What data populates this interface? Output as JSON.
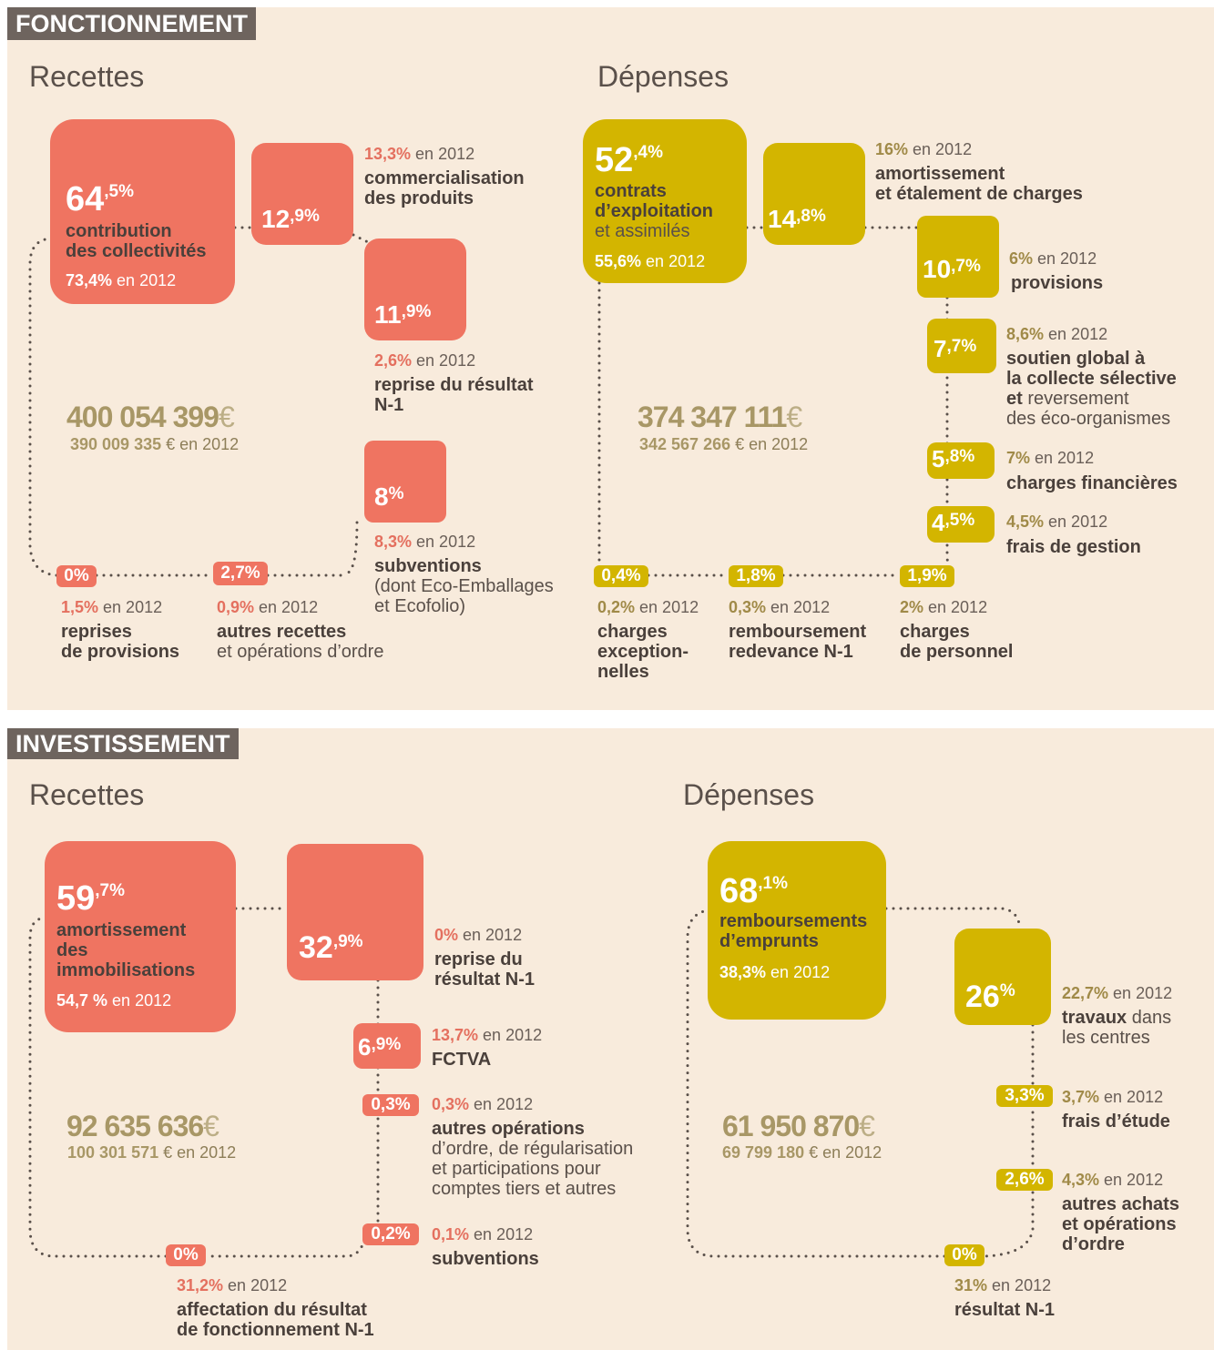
{
  "sections": [
    {
      "title": "FONCTIONNEMENT",
      "panels": [
        {
          "heading": "Recettes",
          "total": "400 054 399€",
          "total_2012": "390 009 335 € en 2012",
          "items": [
            {
              "value": "64,5%",
              "label": "contribution\ndes collectivités",
              "prev": "73,4% en 2012"
            },
            {
              "value": "12,9%",
              "label": "commercialisation\ndes produits",
              "prev": "13,3% en 2012"
            },
            {
              "value": "11,9%",
              "label": "reprise du résultat\nN-1",
              "prev": "2,6% en 2012"
            },
            {
              "value": "8%",
              "label": "subventions",
              "note": "(dont Eco-Emballages\net Ecofolio)",
              "prev": "8,3% en 2012"
            },
            {
              "value": "0%",
              "label": "reprises\nde provisions",
              "prev": "1,5% en 2012"
            },
            {
              "value": "2,7%",
              "label": "autres recettes",
              "note": "et opérations d’ordre",
              "prev": "0,9% en 2012"
            }
          ]
        },
        {
          "heading": "Dépenses",
          "total": "374 347 111€",
          "total_2012": "342 567 266 € en 2012",
          "items": [
            {
              "value": "52,4%",
              "label": "contrats\nd’exploitation",
              "note": "et assimilés",
              "prev": "55,6% en 2012"
            },
            {
              "value": "14,8%",
              "label": "amortissement\net étalement de charges",
              "prev": "16% en 2012"
            },
            {
              "value": "10,7%",
              "label": "provisions",
              "prev": "6% en 2012"
            },
            {
              "value": "7,7%",
              "label": "soutien global à\nla collecte sélective\net",
              "note": "reversement\ndes éco-organismes",
              "prev": "8,6% en 2012"
            },
            {
              "value": "5,8%",
              "label": "charges financières",
              "prev": "7% en 2012"
            },
            {
              "value": "4,5%",
              "label": "frais de gestion",
              "prev": "4,5% en 2012"
            },
            {
              "value": "0,4%",
              "label": "charges\nexception-\nnelles",
              "prev": "0,2% en 2012"
            },
            {
              "value": "1,8%",
              "label": "remboursement\nredevance N-1",
              "prev": "0,3% en 2012"
            },
            {
              "value": "1,9%",
              "label": "charges\nde personnel",
              "prev": "2% en 2012"
            }
          ]
        }
      ]
    },
    {
      "title": "INVESTISSEMENT",
      "panels": [
        {
          "heading": "Recettes",
          "total": "92 635 636€",
          "total_2012": "100 301 571 € en 2012",
          "items": [
            {
              "value": "59,7%",
              "label": "amortissement\ndes\nimmobilisations",
              "prev": "54,7 % en 2012"
            },
            {
              "value": "32,9%",
              "label": "reprise du\nrésultat N-1",
              "prev": "0% en 2012"
            },
            {
              "value": "6,9%",
              "label": "FCTVA",
              "prev": "13,7% en 2012"
            },
            {
              "value": "0,3%",
              "label": "autres opérations",
              "note": "d’ordre, de régularisation\net participations pour\ncomptes tiers et autres",
              "prev": "0,3% en 2012"
            },
            {
              "value": "0,2%",
              "label": "subventions",
              "prev": "0,1% en 2012"
            },
            {
              "value": "0%",
              "label": "affectation du résultat\nde fonctionnement N-1",
              "prev": "31,2% en 2012"
            }
          ]
        },
        {
          "heading": "Dépenses",
          "total": "61 950 870€",
          "total_2012": "69 799 180 € en 2012",
          "items": [
            {
              "value": "68,1%",
              "label": "remboursements\nd’emprunts",
              "prev": "38,3% en 2012"
            },
            {
              "value": "26%",
              "label": "travaux",
              "note": "dans\nles centres",
              "prev": "22,7% en 2012"
            },
            {
              "value": "3,3%",
              "label": "frais d’étude",
              "prev": "3,7% en 2012"
            },
            {
              "value": "2,6%",
              "label": "autres achats\net opérations\nd’ordre",
              "prev": "4,3% en 2012"
            },
            {
              "value": "0%",
              "label": "résultat N-1",
              "prev": "31% en 2012"
            }
          ]
        }
      ]
    }
  ]
}
